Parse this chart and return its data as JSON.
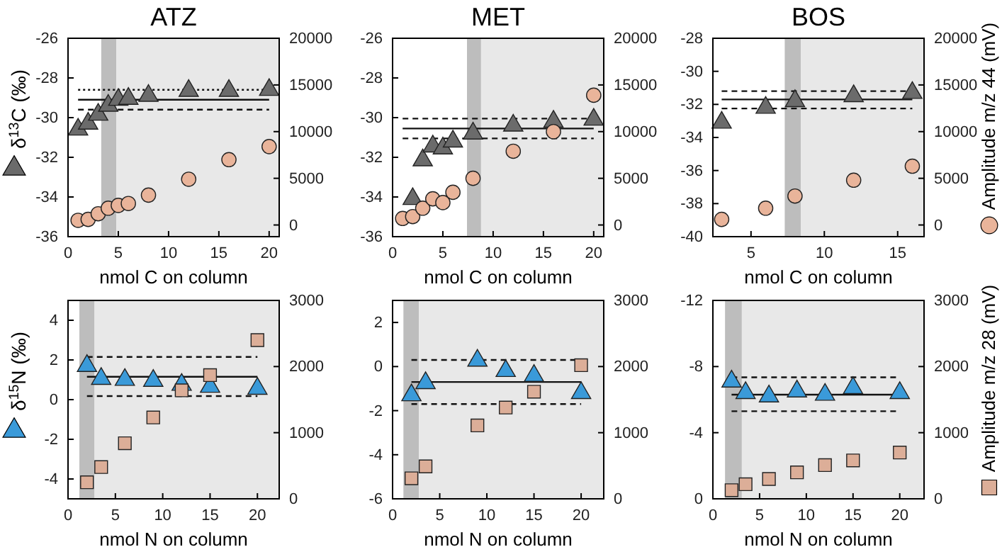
{
  "chart_data": [
    {
      "type": "scatter",
      "title": "ATZ",
      "xlabel": "nmol C on column",
      "xlim": [
        0,
        21
      ],
      "xticks": [
        0,
        5,
        10,
        15,
        20
      ],
      "ylim": [
        -36,
        -26
      ],
      "yticks": [
        -36,
        -34,
        -32,
        -30,
        -28,
        -26
      ],
      "y2lim": [
        -1250,
        20000
      ],
      "y2ticks": [
        0,
        5000,
        10000,
        15000,
        20000
      ],
      "grid": false,
      "ylabel": "δ$^{13}$C (‰)",
      "series": [
        {
          "color": "#6b6b6b",
          "marker": "triangle",
          "x": [
            1,
            2,
            3,
            4,
            5,
            6,
            8,
            12,
            16,
            20
          ],
          "values": [
            -30.6,
            -30.3,
            -29.85,
            -29.4,
            -29.1,
            -29.05,
            -28.9,
            -28.65,
            -28.65,
            -28.6
          ]
        },
        {
          "color": "#e9b49a",
          "marker": "circle",
          "axis": "y2",
          "x": [
            1,
            2,
            3,
            4,
            5,
            6,
            8,
            12,
            16,
            20
          ],
          "values": [
            500,
            600,
            1200,
            1800,
            2100,
            2300,
            3200,
            4900,
            7000,
            8400
          ]
        }
      ],
      "ref_lines": [
        {
          "axis": "y",
          "value": -29.1,
          "line_style": "solid"
        },
        {
          "axis": "y",
          "value": -29.6,
          "line_style": "dashed"
        },
        {
          "axis": "y",
          "value": -28.6,
          "line_style": "dotted"
        }
      ],
      "bands": [
        {
          "axis": "x",
          "from": 3.3,
          "to": 4.8,
          "color": "#bdbdbd"
        },
        {
          "axis": "x",
          "from": 4.8,
          "to": 21,
          "color": "#e8e8e8"
        }
      ]
    },
    {
      "type": "scatter",
      "title": "MET",
      "xlabel": "nmol C on column",
      "xlim": [
        0,
        21
      ],
      "xticks": [
        0,
        5,
        10,
        15,
        20
      ],
      "ylim": [
        -36,
        -26
      ],
      "yticks": [
        -36,
        -34,
        -32,
        -30,
        -28,
        -26
      ],
      "y2lim": [
        -1250,
        20000
      ],
      "y2ticks": [
        0,
        5000,
        10000,
        15000,
        20000
      ],
      "grid": false,
      "series": [
        {
          "color": "#6b6b6b",
          "marker": "triangle",
          "x": [
            2,
            3,
            4,
            5,
            6,
            8,
            12,
            16,
            20
          ],
          "values": [
            -34.1,
            -32.15,
            -31.45,
            -31.55,
            -31.2,
            -30.8,
            -30.4,
            -30.2,
            -30.1
          ]
        },
        {
          "color": "#e9b49a",
          "marker": "circle",
          "axis": "y2",
          "x": [
            1,
            2,
            3,
            4,
            5,
            6,
            8,
            12,
            16,
            20
          ],
          "values": [
            700,
            900,
            1800,
            2800,
            2400,
            3500,
            5000,
            7900,
            10000,
            13900
          ]
        }
      ],
      "ref_lines": [
        {
          "axis": "y",
          "value": -30.55,
          "line_style": "solid"
        },
        {
          "axis": "y",
          "value": -30.05,
          "line_style": "dashed"
        },
        {
          "axis": "y",
          "value": -31.05,
          "line_style": "dashed"
        }
      ],
      "bands": [
        {
          "axis": "x",
          "from": 7.4,
          "to": 8.8,
          "color": "#bdbdbd"
        },
        {
          "axis": "x",
          "from": 8.8,
          "to": 21,
          "color": "#e8e8e8"
        }
      ]
    },
    {
      "type": "scatter",
      "title": "BOS",
      "xlabel": "nmol C on column",
      "xlim": [
        2.4,
        16.8
      ],
      "xticks": [
        5,
        10,
        15
      ],
      "ylim": [
        -40,
        -28
      ],
      "yticks": [
        -40,
        -38,
        -36,
        -34,
        -32,
        -30,
        -28
      ],
      "y2lim": [
        -1250,
        20000
      ],
      "y2ticks": [
        0,
        5000,
        10000,
        15000,
        20000
      ],
      "grid": false,
      "y2label": "Amplitude m/z 44 (mV)",
      "series": [
        {
          "color": "#6b6b6b",
          "marker": "triangle",
          "x": [
            3,
            6,
            8,
            12,
            16
          ],
          "values": [
            -33.1,
            -32.2,
            -31.8,
            -31.5,
            -31.3
          ]
        },
        {
          "color": "#e9b49a",
          "marker": "circle",
          "axis": "y2",
          "x": [
            3,
            6,
            8,
            12,
            16
          ],
          "values": [
            600,
            1800,
            3100,
            4800,
            6300
          ]
        }
      ],
      "ref_lines": [
        {
          "axis": "y",
          "value": -31.7,
          "line_style": "solid"
        },
        {
          "axis": "y",
          "value": -31.2,
          "line_style": "dashed"
        },
        {
          "axis": "y",
          "value": -32.25,
          "line_style": "dashed"
        }
      ],
      "bands": [
        {
          "axis": "x",
          "from": 7.3,
          "to": 8.4,
          "color": "#bdbdbd"
        },
        {
          "axis": "x",
          "from": 8.4,
          "to": 16.8,
          "color": "#e8e8e8"
        }
      ]
    },
    {
      "type": "scatter",
      "xlabel": "nmol N on column",
      "xlim": [
        0,
        22.3
      ],
      "xticks": [
        0,
        5,
        10,
        15,
        20
      ],
      "ylim": [
        -5,
        5
      ],
      "yticks": [
        -4,
        -2,
        0,
        2,
        4
      ],
      "y2lim": [
        0,
        3000
      ],
      "y2ticks": [
        0,
        1000,
        2000,
        3000
      ],
      "grid": false,
      "ylabel": "δ$^{15}$N (‰)",
      "series": [
        {
          "color": "#3a9ad9",
          "marker": "triangle",
          "x": [
            2,
            3.5,
            6,
            9,
            12,
            15,
            20
          ],
          "values": [
            1.7,
            1.05,
            1.0,
            0.95,
            0.75,
            0.65,
            0.55
          ]
        },
        {
          "color": "#dcae98",
          "marker": "square",
          "axis": "y2",
          "x": [
            2,
            3.5,
            6,
            9,
            12,
            15,
            20
          ],
          "values": [
            250,
            480,
            840,
            1230,
            1640,
            1870,
            2400
          ]
        }
      ],
      "ref_lines": [
        {
          "axis": "y",
          "value": 1.15,
          "line_style": "solid"
        },
        {
          "axis": "y",
          "value": 2.15,
          "line_style": "dashed"
        },
        {
          "axis": "y",
          "value": 0.18,
          "line_style": "dashed"
        }
      ],
      "bands": [
        {
          "axis": "x",
          "from": 1.2,
          "to": 2.8,
          "color": "#bdbdbd"
        },
        {
          "axis": "x",
          "from": 2.8,
          "to": 22.3,
          "color": "#e8e8e8"
        }
      ]
    },
    {
      "type": "scatter",
      "xlabel": "nmol N on column",
      "xlim": [
        0,
        22.4
      ],
      "xticks": [
        0,
        5,
        10,
        15,
        20
      ],
      "ylim": [
        -6,
        3
      ],
      "yticks": [
        -6,
        -4,
        -2,
        0,
        2
      ],
      "y2lim": [
        0,
        3000
      ],
      "y2ticks": [
        0,
        1000,
        2000,
        3000
      ],
      "grid": false,
      "series": [
        {
          "color": "#3a9ad9",
          "marker": "triangle",
          "x": [
            2,
            3.5,
            9,
            12,
            15,
            20
          ],
          "values": [
            -1.3,
            -0.75,
            0.27,
            -0.2,
            -0.42,
            -1.2
          ]
        },
        {
          "color": "#dcae98",
          "marker": "square",
          "axis": "y2",
          "x": [
            2,
            3.5,
            9,
            12,
            15,
            20
          ],
          "values": [
            310,
            490,
            1110,
            1380,
            1620,
            2020
          ]
        }
      ],
      "ref_lines": [
        {
          "axis": "y",
          "value": -0.7,
          "line_style": "solid"
        },
        {
          "axis": "y",
          "value": 0.3,
          "line_style": "dashed"
        },
        {
          "axis": "y",
          "value": -1.7,
          "line_style": "dashed"
        }
      ],
      "bands": [
        {
          "axis": "x",
          "from": 1.15,
          "to": 2.8,
          "color": "#bdbdbd"
        },
        {
          "axis": "x",
          "from": 2.8,
          "to": 22.4,
          "color": "#e8e8e8"
        }
      ]
    },
    {
      "type": "scatter",
      "xlabel": "nmol N on column",
      "xlim": [
        0,
        22.6
      ],
      "xticks": [
        0,
        5,
        10,
        15,
        20
      ],
      "ylim": [
        0,
        -12
      ],
      "yticks": [
        0,
        -4,
        -8,
        -12
      ],
      "y2lim": [
        0,
        3000
      ],
      "y2ticks": [
        0,
        1000,
        2000,
        3000
      ],
      "grid": false,
      "y2label": "Amplitude m/z 28 (mV)",
      "series": [
        {
          "color": "#3a9ad9",
          "marker": "triangle",
          "x": [
            2,
            3.5,
            6,
            9,
            12,
            15,
            20
          ],
          "values": [
            -7.1,
            -6.4,
            -6.2,
            -6.5,
            -6.3,
            -6.7,
            -6.4
          ]
        },
        {
          "color": "#dcae98",
          "marker": "square",
          "axis": "y2",
          "x": [
            2,
            3.5,
            6,
            9,
            12,
            15,
            20
          ],
          "values": [
            130,
            220,
            300,
            400,
            510,
            580,
            700
          ]
        }
      ],
      "ref_lines": [
        {
          "axis": "y",
          "value": -6.3,
          "line_style": "solid"
        },
        {
          "axis": "y",
          "value": -7.35,
          "line_style": "dashed"
        },
        {
          "axis": "y",
          "value": -5.3,
          "line_style": "dashed"
        }
      ],
      "bands": [
        {
          "axis": "x",
          "from": 1.3,
          "to": 3.1,
          "color": "#bdbdbd"
        },
        {
          "axis": "x",
          "from": 3.1,
          "to": 22.6,
          "color": "#e8e8e8"
        }
      ]
    }
  ]
}
